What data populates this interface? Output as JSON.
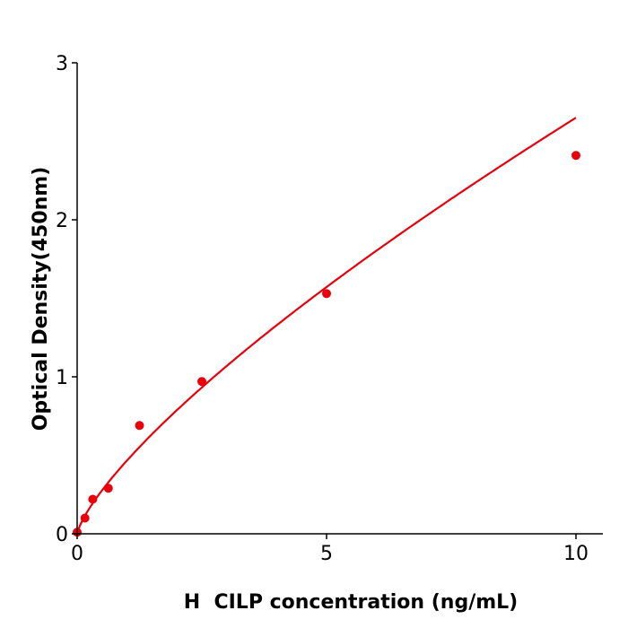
{
  "chart_data": {
    "type": "scatter",
    "title": "",
    "xlabel": "H  CILP concentration (ng/mL)",
    "ylabel": "Optical Density(450nm)",
    "xlim": [
      0,
      10.5
    ],
    "ylim": [
      0,
      3
    ],
    "x_ticks": [
      "0",
      "5",
      "10"
    ],
    "y_ticks": [
      "0",
      "1",
      "2",
      "3"
    ],
    "grid": false,
    "series": [
      {
        "x": [
          0,
          0.156,
          0.3125,
          0.625,
          1.25,
          2.5,
          5,
          10
        ],
        "y": [
          0.01,
          0.1,
          0.22,
          0.29,
          0.69,
          0.97,
          1.53,
          2.41
        ],
        "color": "#e8000b",
        "fit_line": true
      }
    ]
  }
}
